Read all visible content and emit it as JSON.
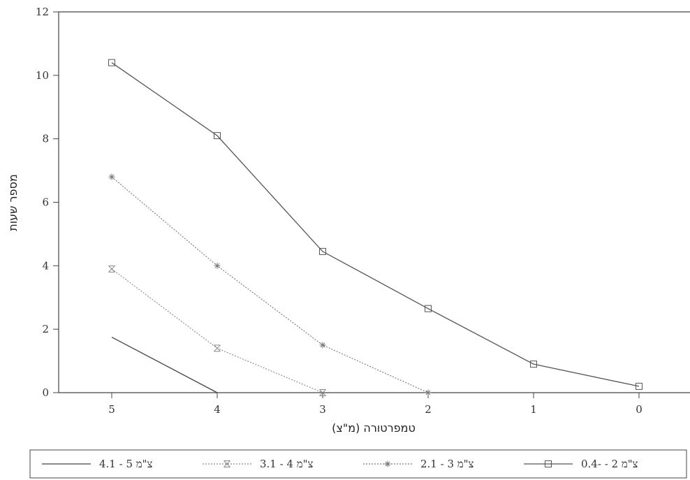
{
  "chart_data": {
    "type": "line",
    "xlabel": "טמפרטורה (מ\"צ)",
    "ylabel": "מספר שעות",
    "x_categories": [
      "5",
      "4",
      "3",
      "2",
      "1",
      "0"
    ],
    "x": [
      5,
      4,
      3,
      2,
      1,
      0
    ],
    "ylim": [
      0,
      12
    ],
    "yticks": [
      "0",
      "2",
      "4",
      "6",
      "8",
      "10",
      "12"
    ],
    "grid": false,
    "legend_position": "bottom",
    "series": [
      {
        "name": "5 - 4.1 מ\"צ",
        "legend_text": "צ\"מ 5 - 4.1",
        "marker": "none",
        "style": "solid",
        "color": "#444444",
        "values": [
          1.75,
          0,
          null,
          null,
          null,
          null
        ]
      },
      {
        "name": "4 - 3.1 מ\"צ",
        "legend_text": "צ\"מ 4 - 3.1",
        "marker": "x",
        "style": "dotted",
        "color": "#888888",
        "values": [
          3.9,
          1.4,
          0,
          null,
          null,
          null
        ]
      },
      {
        "name": "3 - 2.1 מ\"צ",
        "legend_text": "צ\"מ 3 - 2.1",
        "marker": "asterisk",
        "style": "dotted",
        "color": "#777777",
        "values": [
          6.8,
          4.0,
          1.5,
          0,
          null,
          null
        ]
      },
      {
        "name": "2 - -0.4 מ\"צ",
        "legend_text": "צ\"מ 2 - -0.4",
        "marker": "square",
        "style": "solid",
        "color": "#555555",
        "values": [
          10.4,
          8.1,
          4.45,
          2.65,
          0.9,
          0.2
        ]
      }
    ]
  }
}
